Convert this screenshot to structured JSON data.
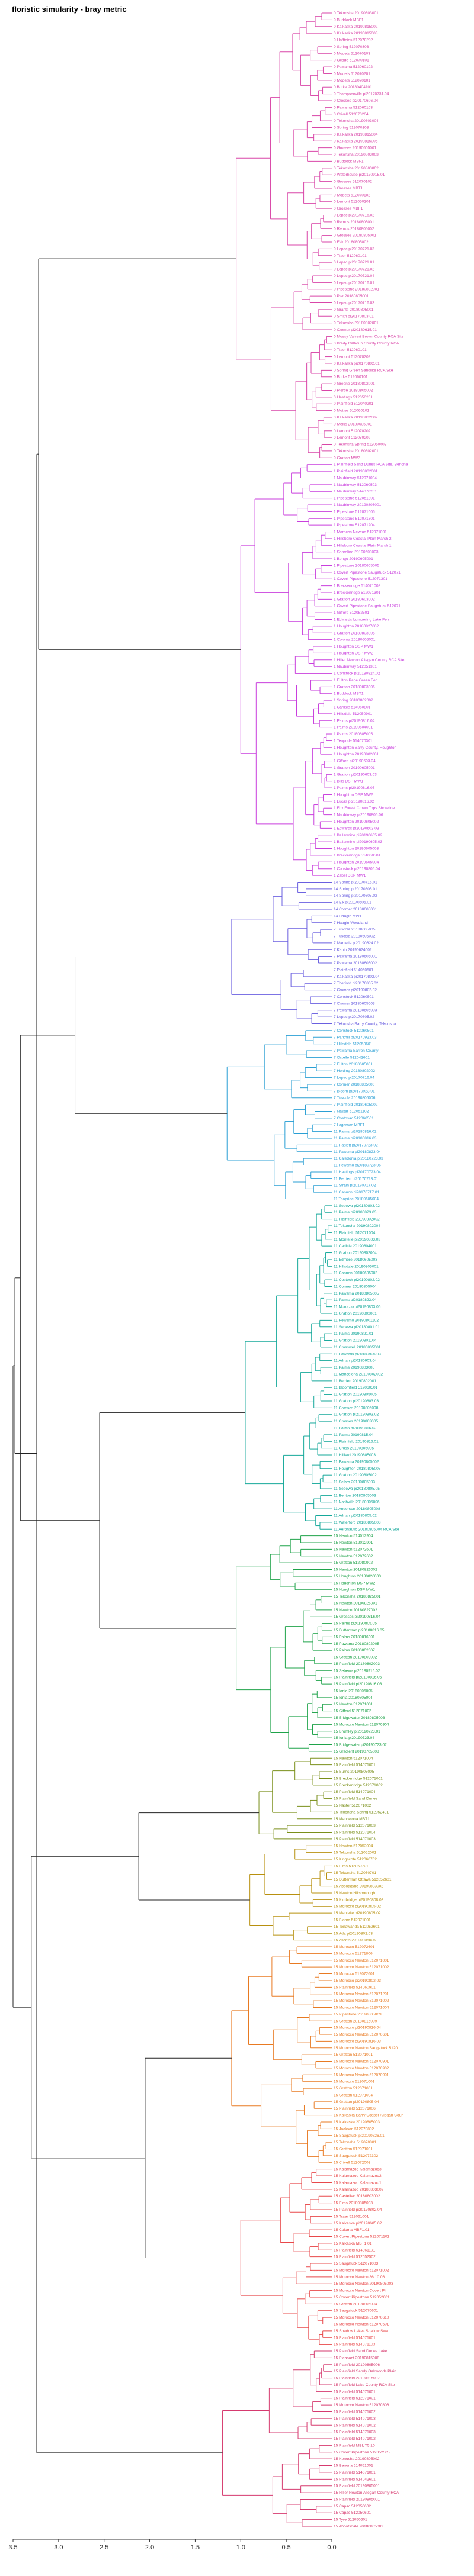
{
  "chart_data": {
    "type": "dendrogram",
    "title": "floristic simularity - bray metric",
    "orientation": "horizontal",
    "xlim": [
      3.5,
      0
    ],
    "x_ticks": [
      "3.5",
      "3.0",
      "2.5",
      "2.0",
      "1.5",
      "1.0",
      "0.5",
      "0.0"
    ],
    "grid": false,
    "clusters": [
      {
        "id": 0,
        "color": "#d946a8",
        "leaves": [
          "0 Tekonsha 20190803001",
          "0 Buddock MBF1",
          "0 Kalkaska 20190815002",
          "0 Kalkaska 20190815003",
          "0 Hoffteins 512070202",
          "0 Spring 512070303",
          "0 Modets 512070103",
          "0 Ocode 512070101",
          "0 Pawama 512060102",
          "0 Modets 512070201",
          "0 Modets 512070101",
          "0 Burke 20180404101",
          "0 Thompsonville pi20170731.04",
          "0 Crosses pi20170606.04",
          "0 Pawama 512060103",
          "0 Crivell 512070204",
          "0 Tekonsha 20190803004",
          "0 Spring 512070103",
          "0 Kalkaska 20190815004",
          "0 Kalkaska 20190815005",
          "0 Grosses 20190605001",
          "0 Tekonsha 20190803003",
          "0 Buddock MBF1",
          "0 Tekonsha 20190803002",
          "0 Waterhouse pi20170915.01",
          "0 Grosses 512070102",
          "0 Grosses MBT1",
          "0 Modets 512070102",
          "0 Lemont 512050201",
          "0 Grosses MBF1",
          "0 Lepac pi20170716.02",
          "0 Remus 20180805001",
          "0 Remus 20180805002",
          "0 Grosses 20180805001",
          "0 Esk 20180805002",
          "0 Lepac pi20170721.03",
          "0 Traer 512060101",
          "0 Lepac pi20170721.01",
          "0 Lepac pi20170721.02",
          "0 Lepac pi20170721.04",
          "0 Lepac pi20170716.01",
          "0 Pipestone 20180802001",
          "0 Pier 20180805001",
          "0 Lepac pi20170716.03",
          "0 Grants 20180805001",
          "0 Smith pi20170803.01",
          "0 Tekonsha 20180802001",
          "0 Cromer pi20180615.01",
          "0 Mossy Valvert Brown County RCA Site",
          "0 Brady Calhoun County County RCA",
          "0 Traer 512060101",
          "0 Lemont 512070202",
          "0 Kalkaska pi20170802.01",
          "0 Spring Green Sandlike RCA Site",
          "0 Burke 512060101",
          "0 Greene 20180802001",
          "0 Pierce 20180805002",
          "0 Hastings 512050201",
          "0 Plainfield 512040201",
          "0 Mottes 512060101",
          "0 Kalkaska 20190802002",
          "0 Meiss 20180605001",
          "0 Lemont 512070202",
          "0 Lemont 512070303",
          "0 Tekonsha Spring 512050402",
          "0 Tekonsha 20180802001",
          "0 Gratton MW2"
        ]
      },
      {
        "id": 1,
        "color": "#c93fdd",
        "leaves": [
          "1 Plainfield Sand Dunes RCA Site, Benona",
          "1 Plainfield 20190802001",
          "1 Naubinway 512071004",
          "1 Naubinway 512060503",
          "1 Naubinway 514070201",
          "1 Pipestone 512051301",
          "1 Naubinway 20190803001",
          "1 Pipestone 512071005",
          "1 Pipestone 512071301",
          "1 Pipestone 512071204",
          "1 Morocco Newton 512071001",
          "1 Hillsboro Coastal Plain Marsh 2",
          "1 Hillsboro Coastal Plain Marsh 1",
          "1 Shoreline 20190603003",
          "1 Bongo 20190605001",
          "1 Pipestone 20180605005",
          "1 Covert Pipestone Saugatuck 512071",
          "1 Covert Pipestone 512071301",
          "1 Breckenridge 514071008",
          "1 Breckenridge 512071301",
          "1 Gratton 20180603002",
          "1 Covert Pipestone Saugatuck 512071",
          "1 Gifford 512052501",
          "1 Edwards Lumbering Lake Fen",
          "1 Houghton 20180827002",
          "1 Gratton 20180803005",
          "1 Coloma 20190605001",
          "1 Houghton OSP MW1",
          "1 Houghton OSP MW2",
          "1 Hiller Newton Allegan County RCA Site",
          "1 Naubinway 512051301",
          "1 Constock pi20180824.02",
          "1 Fulton Page Green Fen",
          "1 Gratton 20180803006",
          "1 Buddock MBT1",
          "1 Spring 20180802002",
          "1 Carlisle 514060801",
          "1 Hillsdale 512050901",
          "1 Palms pi20190816.04",
          "1 Palms 20190604001",
          "1 Palms 20180605005",
          "1 Teapride 514070301",
          "1 Houghton Barry County, Houghton",
          "1 Houghton 20190802001",
          "1 Gifford pi20190603.04",
          "1 Gratton 20190605001",
          "1 Gratton pi20190603.03",
          "1 Bills DSP MW1",
          "1 Palms pi20190816.05",
          "1 Houghton DSP MW2",
          "1 Lucas pi20190816.02",
          "1 Fox Forest Crown Tops Shoreline",
          "1 Naubinway pi20190805.06",
          "1 Houghton 20190605002",
          "1 Edwards pi20190603.03",
          "1 Ballarmine pi20190605.02",
          "1 Ballarmine pi20190605.03",
          "1 Houghton 20190605003",
          "1 Breckenridge 514060501",
          "1 Houghton 20190605004",
          "1 Constock pi20190805.04",
          "1 Zabel DSP MW1"
        ]
      },
      {
        "id": 2,
        "color": "#6a5fe0",
        "leaves": [
          "14 Spring pi20170716.01",
          "14 Spring pi20170805.01",
          "14 Spring pi20170605.02",
          "14 Elk pi20170605.01",
          "14 Cromer 20180605001",
          "14 Haagin MW1",
          "7 Haagin Woodland",
          "7 Tuscola 20180605005",
          "7 Tuscola 20180605002",
          "7 Mantelle pi20190624.02",
          "7 Kanin 20190624002",
          "7 Pawama 20180605001",
          "7 Pawama 20180605002",
          "7 Plainfield 514060501",
          "7 Kalkaska pi20170802.04",
          "7 Thetford pi20170805.02",
          "7 Cromer pi20190802.02",
          "7 Constock 512060501",
          "7 Cromer 20180605003",
          "7 Pawama 20180605003",
          "7 Lepac pi20170805.02",
          "7 Tekonsha Barry County, Tekonsha"
        ]
      },
      {
        "id": 3,
        "color": "#2a9fd4",
        "leaves": [
          "7 Constock 512060501",
          "7 Parkhill pi20170923.03",
          "7 Hillsdale 512050601",
          "7 Pawama Barron County",
          "7 Ostelle 512042601",
          "7 Fulton 20180605001",
          "7 Holding 20180802002",
          "7 Lepac pi20170716.04",
          "7 Conner 20180805006",
          "7 Bloom pi20170923.01",
          "7 Tuscola 20190805006",
          "7 Plainfield 20180605002",
          "7 Naster 512051102",
          "7 Costosac 512060501",
          "7 Lagarace MBF1",
          "11 Palms pi20180816.02",
          "11 Palms pi20180816.03",
          "11 Haslett pi20170723.02",
          "11 Pawama pi20180823.04",
          "11 Caledonia pi20180723.03",
          "11 Pewamo pi20180723.06",
          "11 Hastings pi20170723.04",
          "11 Berrien pi20170723.01",
          "11 Strain pi20170717.02",
          "11 Cannon pi20170717.01",
          "11 Teapride 20180605004"
        ]
      },
      {
        "id": 4,
        "color": "#15a89a",
        "leaves": [
          "11 Sebewa pi20180803.02",
          "11 Palms pi20180823.03",
          "11 Plainfield 20190802002",
          "11 Tekonsha 20190802004",
          "11 Plainfield 512071004",
          "11 Montelle pi20190803.03",
          "11 Carlisle 20190804001",
          "11 Gratton 20190802004",
          "11 Edmore 20180605003",
          "11 Hillsdale 20190805001",
          "11 Cannon 20180605002",
          "11 Costock pi20190802.02",
          "11 Conner 20180805004",
          "11 Pawama 20180805005",
          "11 Palms pi20180823.04",
          "11 Morocco pi20190803.05",
          "11 Gratton 20190802001",
          "11 Pewamo 20190801102",
          "11 Sebewa pi20180801.01",
          "11 Palms 20190821.01",
          "11 Gratton 20190801104",
          "11 Crosswell 20180805001",
          "11 Edwards pi20180905.03",
          "11 Adrian pi20180903.04",
          "11 Palms 20190803005",
          "11 Mancelona 20190802002",
          "11 Berrien 20190802001",
          "11 Bloomfield 512060501",
          "11 Gratton 20180805005",
          "11 Gratton pi20190803.03",
          "11 Grosses 20190805008",
          "11 Gratton pi20190803.02",
          "11 Crosses 20190803005",
          "11 Palms pi20190816.02",
          "11 Palms 20190815.04",
          "11 Plainfield 20190816.01",
          "11 Cross 20190805005",
          "11 Hilliard 20190805003",
          "11 Pawama 20190805002",
          "11 Houghton 20180805005",
          "11 Gratton 20190805002",
          "11 Seibra 20180805003",
          "11 Sebewa pi20180805.05",
          "11 Benton 20180805003",
          "11 Nashville 20180805006",
          "11 Anderson 20180805008",
          "11 Adrian pi20180805.02",
          "11 Waterford 20180805003",
          "11 Aeronautic 20180805004 RCA Site"
        ]
      },
      {
        "id": 5,
        "color": "#1fa34a",
        "leaves": [
          "15 Newton 514012904",
          "15 Newton 512012901",
          "15 Newton 512072601",
          "15 Newton 512072602",
          "15 Gratton 512080902",
          "15 Newton 20180826002",
          "15 Houghton 20180826003",
          "15 Houghton DSP MW2",
          "15 Houghton DSP MW1",
          "15 Tekonsha 20180825001",
          "15 Newton 20180826001",
          "15 Newton 20180827002",
          "15 Grosses pi20190816.04",
          "15 Palms pi20190805.05",
          "15 Dutterman pi20180816.05",
          "15 Palms 20180816001",
          "15 Pawama 20180802005",
          "15 Palms 20180802007",
          "15 Gratton 20190802002",
          "15 Plainfield 20180802003",
          "15 Sebewa pi20180916.02",
          "15 Plainfield pi20180816.05",
          "15 Plainfield pi20190816.03",
          "15 Ionia 20180805005",
          "15 Ionia 20180805004",
          "15 Newton 512071001",
          "15 Gifford 512071002",
          "15 Bridgewater 20180805003",
          "15 Morocco Newton 512070904",
          "15 Bromley pi20190723.01",
          "15 Ionia pi20190723.04",
          "15 Bridgewater pi20190723.02",
          "15 Gradient 20190705008"
        ]
      },
      {
        "id": 6,
        "color": "#7a8f1a",
        "leaves": [
          "15 Newton 512071004",
          "15 Plainfield 514071001",
          "15 Burns 20190805005",
          "15 Breckenridge 512071001",
          "15 Breckenridge 512071002",
          "15 Plainfield 514071004",
          "15 Plainfield Sand Dunes",
          "15 Naster 512071002",
          "15 Tekonsha Spring 512052401",
          "15 Mancelona MBT1",
          "15 Plainfield 512071003",
          "15 Plainfield 512071004",
          "15 Plainfield 514071003"
        ]
      },
      {
        "id": 7,
        "color": "#b8900f",
        "leaves": [
          "15 Newton 512052004",
          "15 Tekonsha 512052001",
          "15 Kingscote 512060702",
          "15 Elms 512060701",
          "15 Tekonsha 512060701",
          "15 Dutterman Ottawa 512052601",
          "15 Abbotsdale 20190803002",
          "15 Newton Hillsborough",
          "15 Kimbridge pi20190808.03",
          "15 Morocco pi20190805.02",
          "15 Mantelle pi20190805.02",
          "15 Bloom 512071001",
          "15 Tonawanda 512052601",
          "15 Ada pi20190802.03",
          "15 Ascots 20190805006"
        ]
      },
      {
        "id": 8,
        "color": "#e87a22",
        "leaves": [
          "15 Morocco 512072601",
          "15 Morocco 51271806",
          "15 Morocco Newton 512071001",
          "15 Morocco Newton 512071002",
          "15 Morocco 512072601",
          "15 Morocco pi20190802.03",
          "15 Plainfield 514060901",
          "15 Morocco Newton 512071201",
          "15 Morocco Newton 512071002",
          "15 Morocco Newton 512071004",
          "15 Pipestone 20190805009",
          "15 Gratton 20180816009",
          "15 Morocco pi20190816.04",
          "15 Morocco Newton 512070601",
          "15 Morocco pi20190816.03",
          "15 Morocco Newton Saugatuck 5120",
          "15 Gratton 512071001",
          "15 Morocco Newton 512070901",
          "15 Morocco Newton 512070902",
          "15 Morocco Newton 512070901",
          "15 Morocco 512071001",
          "15 Gratton 512071001",
          "15 Gratton 512071004",
          "15 Gratton pi20190805.04",
          "15 Plainfield 512071006",
          "15 Kalkaska Barry Cooper Allegan Coun",
          "15 Kalkaska 20190805003",
          "15 Jackson 512070802",
          "15 Saugatuck pi20190726.01",
          "15 Tekonsha 512070801",
          "15 Gratton 512071001",
          "15 Saugatuck 512072302",
          "15 Crivell 512072003"
        ]
      },
      {
        "id": 9,
        "color": "#e8484a",
        "leaves": [
          "15 Kalamazoo Kalamazoo3",
          "15 Kalamazoo Kalamazoo2",
          "15 Kalamazoo Kalamazoo1",
          "15 Kalamazoo 20180803002",
          "15 Castellac 20180803002",
          "15 Elms 20180805003",
          "15 Plainfield pi20170802.04",
          "15 Traer 512061001",
          "15 Kalkaska pi20190605.02",
          "15 Coloma MBF1.01",
          "15 Covert Pipestone 512071101",
          "15 Kalkaska MBT1.01",
          "15 Plainfield 514061101",
          "15 Plainfield 512052502",
          "15 Saugatuck 512071003",
          "15 Morocco Newton 512071002",
          "15 Morocco Newton 86.10.06",
          "15 Morocco Newton 20190805003",
          "15 Morocco Newton Covert Pi",
          "15 Covert Pipestone 512052601",
          "15 Gratton 20190805004",
          "15 Saugatuck 512070601",
          "15 Morocco Newton 512070610",
          "15 Morocco Newton 512070601",
          "15 Shadow Lakes Shallow Swa",
          "15 Plainfield 514071001",
          "15 Plainfield 514071103"
        ]
      },
      {
        "id": 10,
        "color": "#d63a6f",
        "leaves": [
          "15 Plainfield Sand Dunes Lake",
          "15 Pleasant 20190815008",
          "15 Plainfield 20190805006",
          "15 Plainfield Sandy Oakwoods Plain",
          "15 Plainfield 20190815007",
          "15 Plainfield Lake County RCA Site",
          "15 Plainfield 514071001",
          "15 Plainfield 512071001",
          "15 Morocco Newton 512070806",
          "15 Plainfield 514071002",
          "15 Plainfield 514071003",
          "15 Plainfield 514071002",
          "15 Plainfield 514071003",
          "15 Plainfield 514071002",
          "15 Plainfield MBL T5.10",
          "15 Covert Pipestone 512052505",
          "15 Kenosha 20190805002",
          "15 Benona 514051001",
          "15 Plainfield 514071001",
          "15 Plainfield 514042601",
          "15 Plainfield 20190805001",
          "15 Hiller Newton Allegan County RCA",
          "15 Plainfield 20190805001",
          "15 Capac 512050602",
          "15 Capac 512050601",
          "15 Tyre 512050601",
          "15 Abbotsdale 20180805002"
        ]
      }
    ],
    "top_merges": [
      {
        "left": 0,
        "right": 1,
        "height": 3.22
      },
      {
        "left": 2,
        "right": 3,
        "height": 2.82
      },
      {
        "left": 4,
        "right": 5,
        "height": 2.55
      },
      {
        "left": 6,
        "right": 7,
        "height": 2.12
      },
      {
        "left": 8,
        "right": 9,
        "height": 2.05
      },
      {
        "left": 10,
        "right": 11,
        "height": 2.46
      },
      {
        "left": 12,
        "right": 13,
        "height": 3.42
      },
      {
        "left": 14,
        "right": 15,
        "height": 3.3
      },
      {
        "left": 16,
        "right": 17,
        "height": 3.48
      },
      {
        "left": 18,
        "right": 19,
        "height": 3.5
      }
    ]
  }
}
